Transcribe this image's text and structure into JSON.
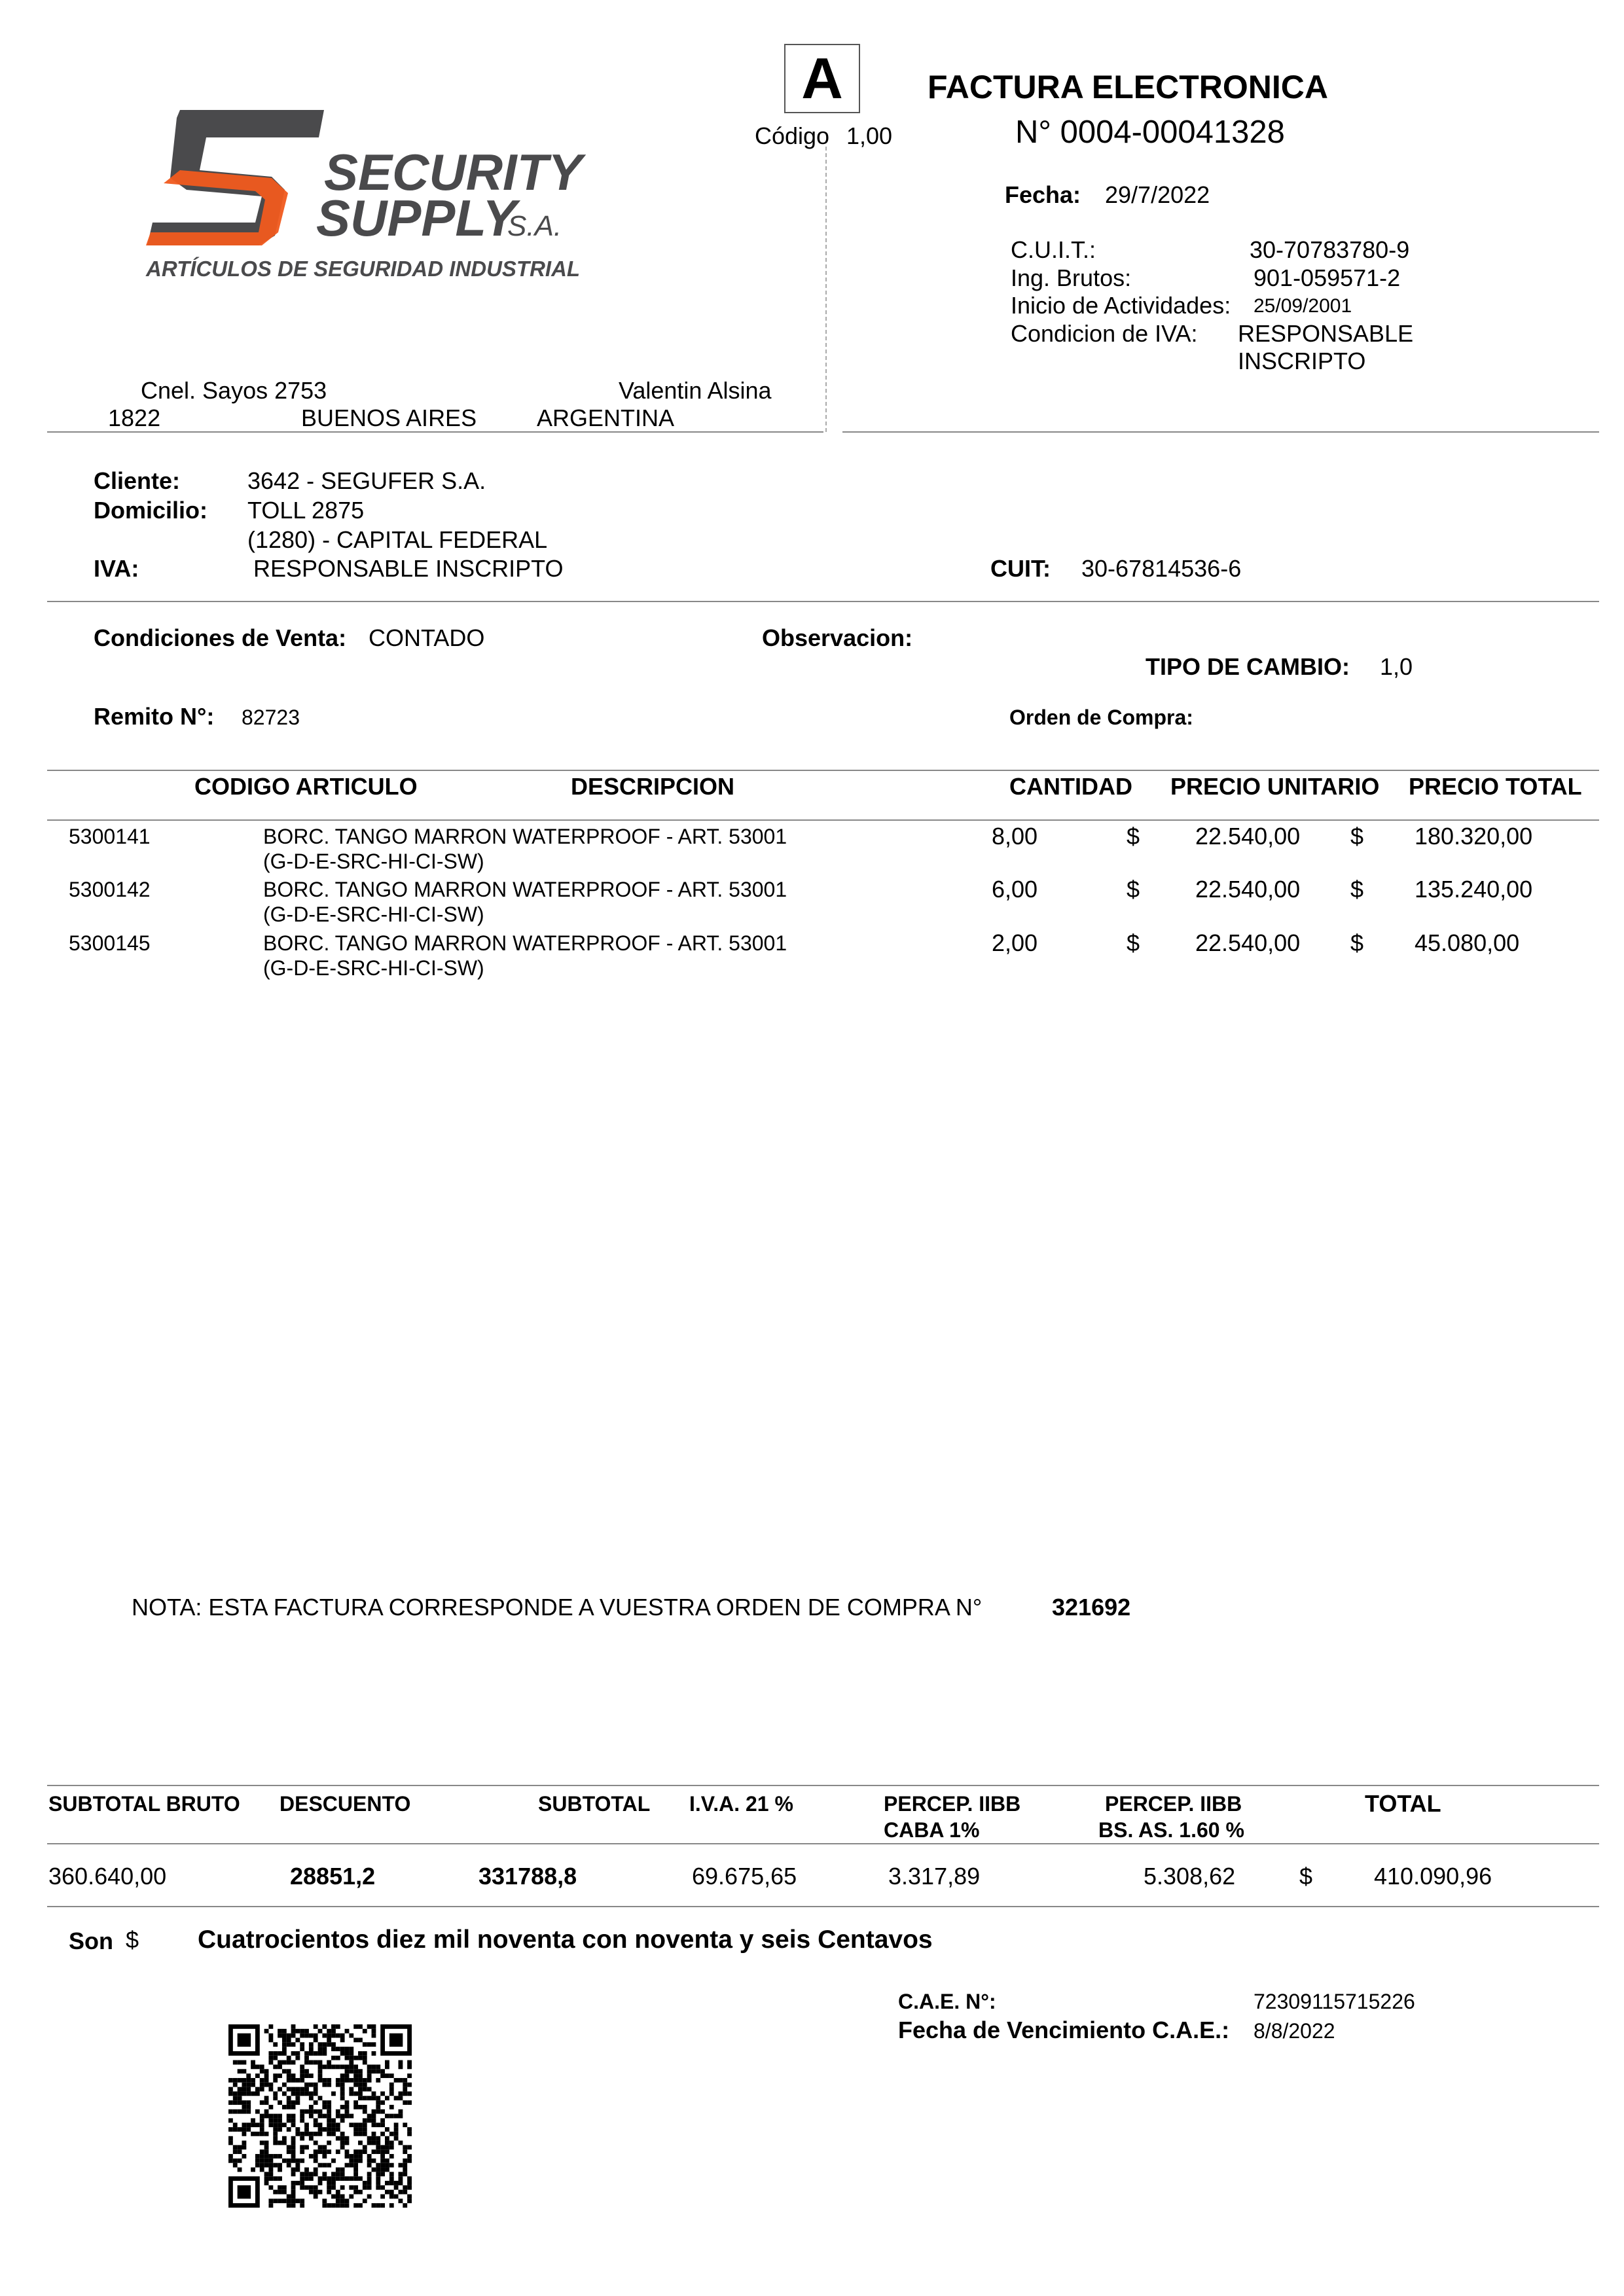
{
  "company": {
    "logo_name": "SECURITY SUPPLY S.A.",
    "logo_line1": "SECURITY",
    "logo_line2": "SUPPLY",
    "logo_suffix": "S.A.",
    "logo_tagline": "ARTÍCULOS DE SEGURIDAD INDUSTRIAL",
    "address_street": "Cnel. Sayos 2753",
    "address_locality": "Valentin Alsina",
    "address_zip": "1822",
    "address_province": "BUENOS AIRES",
    "address_country": "ARGENTINA",
    "colors": {
      "gray": "#4a4a4c",
      "orange": "#f05a1e"
    }
  },
  "invoice": {
    "letter": "A",
    "codigo_label": "Código",
    "codigo_value": "1,00",
    "title": "FACTURA ELECTRONICA",
    "number": "N°  0004-00041328",
    "fecha_label": "Fecha:",
    "fecha_value": "29/7/2022",
    "cuit_label": "C.U.I.T.:",
    "cuit_value": "30-70783780-9",
    "ib_label": "Ing. Brutos:",
    "ib_value": "901-059571-2",
    "inicio_label": "Inicio de Actividades:",
    "inicio_value": "25/09/2001",
    "iva_label": "Condicion de IVA:",
    "iva_value_1": "RESPONSABLE",
    "iva_value_2": "INSCRIPTO"
  },
  "client": {
    "cliente_label": "Cliente:",
    "cliente_value": "3642 - SEGUFER S.A.",
    "domicilio_label": "Domicilio:",
    "domicilio_value_1": "TOLL 2875",
    "domicilio_value_2": "(1280) - CAPITAL FEDERAL",
    "iva_label": "IVA:",
    "iva_value": "RESPONSABLE INSCRIPTO",
    "cuit_label": "CUIT:",
    "cuit_value": "30-67814536-6"
  },
  "conditions": {
    "venta_label": "Condiciones de Venta:",
    "venta_value": "CONTADO",
    "observacion_label": "Observacion:",
    "cambio_label": "TIPO DE CAMBIO:",
    "cambio_value": "1,0",
    "remito_label": "Remito N°:",
    "remito_value": "82723",
    "orden_label": "Orden de Compra:"
  },
  "items": {
    "headers": [
      "CODIGO ARTICULO",
      "DESCRIPCION",
      "CANTIDAD",
      "PRECIO UNITARIO",
      "PRECIO TOTAL"
    ],
    "currency": "$",
    "rows": [
      {
        "code": "5300141",
        "desc1": "BORC. TANGO MARRON WATERPROOF - ART. 53001",
        "desc2": "(G-D-E-SRC-HI-CI-SW)",
        "qty": "8,00",
        "unit": "22.540,00",
        "total": "180.320,00"
      },
      {
        "code": "5300142",
        "desc1": "BORC. TANGO MARRON WATERPROOF - ART. 53001",
        "desc2": "(G-D-E-SRC-HI-CI-SW)",
        "qty": "6,00",
        "unit": "22.540,00",
        "total": "135.240,00"
      },
      {
        "code": "5300145",
        "desc1": "BORC. TANGO MARRON WATERPROOF - ART. 53001",
        "desc2": "(G-D-E-SRC-HI-CI-SW)",
        "qty": "2,00",
        "unit": "22.540,00",
        "total": "45.080,00"
      }
    ]
  },
  "note": {
    "text": "NOTA: ESTA FACTURA CORRESPONDE A VUESTRA ORDEN DE COMPRA N°",
    "order": "321692"
  },
  "totals": {
    "headers": {
      "subtotal_bruto": "SUBTOTAL BRUTO",
      "descuento": "DESCUENTO",
      "subtotal": "SUBTOTAL",
      "iva": "I.V.A. 21 %",
      "caba_1": "PERCEP. IIBB",
      "caba_2": "CABA 1%",
      "bsas_1": "PERCEP. IIBB",
      "bsas_2": "BS. AS. 1.60 %",
      "total": "TOTAL"
    },
    "values": {
      "subtotal_bruto": "360.640,00",
      "descuento": "28851,2",
      "subtotal": "331788,8",
      "iva": "69.675,65",
      "caba": "3.317,89",
      "bsas": "5.308,62",
      "currency": "$",
      "total": "410.090,96"
    }
  },
  "son": {
    "label": "Son",
    "currency": "$",
    "text": "Cuatrocientos diez mil noventa con noventa y seis Centavos"
  },
  "cae": {
    "label": "C.A.E. N°:",
    "value": "72309115715226",
    "venc_label": "Fecha de Vencimiento C.A.E.:",
    "venc_value": "8/8/2022"
  }
}
